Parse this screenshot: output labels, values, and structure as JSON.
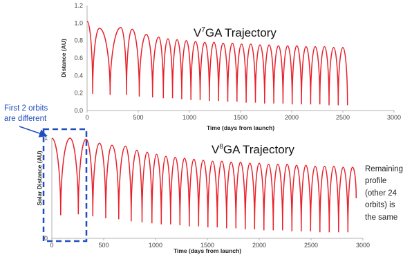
{
  "colors": {
    "series": "#e8202a",
    "axis": "#b0b0b0",
    "annotation": "#1f4fbf",
    "text": "#222222"
  },
  "chart_data": [
    {
      "type": "line",
      "title": {
        "prefix": "V",
        "sup": "7",
        "suffix": "GA Trajectory"
      },
      "xlabel": "Time (days from launch)",
      "ylabel": "Distance (AU)",
      "xlim": [
        0,
        3000
      ],
      "ylim": [
        0,
        1.2
      ],
      "xticks": [
        "0",
        "500",
        "1000",
        "1500",
        "2000",
        "2500",
        "3000"
      ],
      "yticks": [
        "0.0",
        "0.2",
        "0.4",
        "0.6",
        "0.8",
        "1.0",
        "1.2"
      ],
      "grid": false,
      "series": [
        {
          "peaks": [
            [
              0,
              1.02
            ],
            [
              120,
              0.94
            ],
            [
              330,
              0.95
            ],
            [
              440,
              0.93
            ],
            [
              580,
              0.87
            ],
            [
              700,
              0.84
            ],
            [
              790,
              0.82
            ],
            [
              880,
              0.81
            ],
            [
              970,
              0.8
            ],
            [
              1060,
              0.79
            ],
            [
              1150,
              0.78
            ],
            [
              1240,
              0.78
            ],
            [
              1330,
              0.77
            ],
            [
              1420,
              0.77
            ],
            [
              1510,
              0.76
            ],
            [
              1600,
              0.76
            ],
            [
              1690,
              0.75
            ],
            [
              1780,
              0.75
            ],
            [
              1870,
              0.74
            ],
            [
              1960,
              0.74
            ],
            [
              2050,
              0.74
            ],
            [
              2140,
              0.73
            ],
            [
              2230,
              0.73
            ],
            [
              2320,
              0.73
            ],
            [
              2410,
              0.72
            ],
            [
              2500,
              0.72
            ]
          ],
          "troughs": [
            [
              55,
              0.19
            ],
            [
              225,
              0.18
            ],
            [
              385,
              0.18
            ],
            [
              510,
              0.16
            ],
            [
              640,
              0.15
            ],
            [
              745,
              0.14
            ],
            [
              835,
              0.14
            ],
            [
              925,
              0.13
            ],
            [
              1015,
              0.12
            ],
            [
              1105,
              0.12
            ],
            [
              1195,
              0.11
            ],
            [
              1285,
              0.11
            ],
            [
              1375,
              0.1
            ],
            [
              1465,
              0.1
            ],
            [
              1555,
              0.09
            ],
            [
              1645,
              0.09
            ],
            [
              1735,
              0.08
            ],
            [
              1825,
              0.08
            ],
            [
              1915,
              0.08
            ],
            [
              2005,
              0.07
            ],
            [
              2095,
              0.07
            ],
            [
              2185,
              0.07
            ],
            [
              2275,
              0.07
            ],
            [
              2365,
              0.06
            ],
            [
              2455,
              0.06
            ],
            [
              2545,
              0.06
            ]
          ],
          "end": [
            2585,
            0.4
          ]
        }
      ]
    },
    {
      "type": "line",
      "title": {
        "prefix": "V",
        "sup": "8",
        "suffix": "GA Trajectory"
      },
      "xlabel": "Time (days from launch)",
      "ylabel": "Solar Distance (AU)",
      "xlim": [
        0,
        3000
      ],
      "ylim": [
        0,
        1
      ],
      "xticks": [
        "0",
        "500",
        "1000",
        "1500",
        "2000",
        "2500",
        "3000"
      ],
      "yticks": [
        "0",
        "1"
      ],
      "grid": false,
      "series": [
        {
          "peaks": [
            [
              0,
              1.0
            ],
            [
              175,
              1.0
            ],
            [
              330,
              0.99
            ],
            [
              460,
              0.95
            ],
            [
              580,
              0.93
            ],
            [
              710,
              0.92
            ],
            [
              820,
              0.88
            ],
            [
              920,
              0.86
            ],
            [
              1010,
              0.84
            ],
            [
              1100,
              0.82
            ],
            [
              1190,
              0.81
            ],
            [
              1280,
              0.8
            ],
            [
              1370,
              0.79
            ],
            [
              1460,
              0.78
            ],
            [
              1550,
              0.77
            ],
            [
              1640,
              0.77
            ],
            [
              1730,
              0.76
            ],
            [
              1820,
              0.76
            ],
            [
              1910,
              0.75
            ],
            [
              2000,
              0.75
            ],
            [
              2090,
              0.74
            ],
            [
              2180,
              0.74
            ],
            [
              2270,
              0.74
            ],
            [
              2360,
              0.73
            ],
            [
              2450,
              0.73
            ],
            [
              2540,
              0.72
            ],
            [
              2630,
              0.72
            ],
            [
              2720,
              0.72
            ],
            [
              2810,
              0.71
            ],
            [
              2900,
              0.71
            ]
          ],
          "troughs": [
            [
              85,
              0.23
            ],
            [
              255,
              0.24
            ],
            [
              395,
              0.22
            ],
            [
              520,
              0.2
            ],
            [
              645,
              0.19
            ],
            [
              765,
              0.17
            ],
            [
              870,
              0.16
            ],
            [
              965,
              0.15
            ],
            [
              1055,
              0.14
            ],
            [
              1145,
              0.14
            ],
            [
              1235,
              0.13
            ],
            [
              1325,
              0.12
            ],
            [
              1415,
              0.12
            ],
            [
              1505,
              0.11
            ],
            [
              1595,
              0.11
            ],
            [
              1685,
              0.1
            ],
            [
              1775,
              0.1
            ],
            [
              1865,
              0.09
            ],
            [
              1955,
              0.09
            ],
            [
              2045,
              0.08
            ],
            [
              2135,
              0.08
            ],
            [
              2225,
              0.08
            ],
            [
              2315,
              0.07
            ],
            [
              2405,
              0.07
            ],
            [
              2495,
              0.07
            ],
            [
              2585,
              0.06
            ],
            [
              2675,
              0.06
            ],
            [
              2765,
              0.06
            ],
            [
              2855,
              0.06
            ]
          ],
          "end": [
            2935,
            0.4
          ]
        }
      ]
    }
  ],
  "annotations": {
    "left_note": [
      "First 2 orbits",
      "are different"
    ],
    "right_note": [
      "Remaining",
      "profile",
      "(other 24",
      "orbits) is",
      "the same"
    ]
  }
}
